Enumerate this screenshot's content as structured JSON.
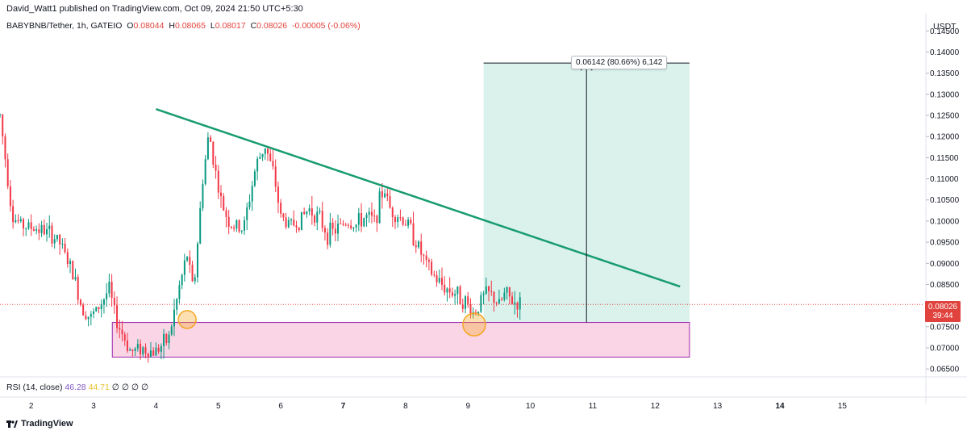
{
  "header": {
    "published": "David_Watt1 published on TradingView.com, Oct 09, 2024 21:50 UTC+5:30"
  },
  "legend": {
    "symbol": "BABYBNB/Tether, 1h, GATEIO",
    "open_label": "O",
    "open": "0.08044",
    "high_label": "H",
    "high": "0.08065",
    "low_label": "L",
    "low": "0.08017",
    "close_label": "C",
    "close": "0.08026",
    "change": "-0.00005 (-0.06%)"
  },
  "price_axis": {
    "unit": "USDT",
    "current_price": "0.08026",
    "countdown": "39:44"
  },
  "measure": {
    "label": "0.06142 (80.66%) 6,142"
  },
  "rsi": {
    "label": "RSI (14, close)",
    "value1": "46.28",
    "value2": "44.71",
    "extras": "∅ ∅ ∅ ∅"
  },
  "branding": {
    "logo_text": "TradingView"
  },
  "colors": {
    "up": "#089981",
    "down": "#f23645",
    "trendline": "#179b70",
    "measure_fill": "#d6f0ea",
    "support_fill": "#f9d5e5",
    "support_border": "#9c27b0",
    "circle": "#f5a623",
    "price_tag": "#e0433d"
  },
  "chart_data": {
    "type": "candlestick",
    "title": "BABYBNB/Tether, 1h, GATEIO",
    "ylabel": "USDT",
    "ylim": [
      0.0635,
      0.1485
    ],
    "y_ticks": [
      "0.14500",
      "0.14000",
      "0.13500",
      "0.13000",
      "0.12500",
      "0.12000",
      "0.11500",
      "0.11000",
      "0.10500",
      "0.10000",
      "0.09500",
      "0.09000",
      "0.08500",
      "0.08000",
      "0.07500",
      "0.07000",
      "0.06500"
    ],
    "y_tick_values": [
      0.145,
      0.14,
      0.135,
      0.13,
      0.125,
      0.12,
      0.115,
      0.11,
      0.105,
      0.1,
      0.095,
      0.09,
      0.085,
      0.08,
      0.075,
      0.07,
      0.065
    ],
    "x_ticks": [
      "2",
      "3",
      "4",
      "5",
      "6",
      "7",
      "8",
      "9",
      "10",
      "11",
      "12",
      "13",
      "14",
      "15"
    ],
    "x_tick_bold": [
      "7",
      "14"
    ],
    "xlim_days": [
      1.5,
      16.3
    ],
    "candles_path_days": [
      [
        1.5,
        0.125
      ],
      [
        1.7,
        0.101
      ],
      [
        1.85,
        0.099
      ],
      [
        2.0,
        0.0985
      ],
      [
        2.15,
        0.098
      ],
      [
        2.3,
        0.097
      ],
      [
        2.45,
        0.095
      ],
      [
        2.6,
        0.09
      ],
      [
        2.7,
        0.086
      ],
      [
        2.8,
        0.08
      ],
      [
        2.95,
        0.077
      ],
      [
        3.1,
        0.08
      ],
      [
        3.25,
        0.084
      ],
      [
        3.35,
        0.077
      ],
      [
        3.5,
        0.072
      ],
      [
        3.6,
        0.069
      ],
      [
        3.75,
        0.07
      ],
      [
        3.95,
        0.069
      ],
      [
        4.05,
        0.07
      ],
      [
        4.2,
        0.072
      ],
      [
        4.3,
        0.079
      ],
      [
        4.4,
        0.086
      ],
      [
        4.5,
        0.092
      ],
      [
        4.6,
        0.083
      ],
      [
        4.75,
        0.11
      ],
      [
        4.85,
        0.121
      ],
      [
        4.95,
        0.112
      ],
      [
        5.05,
        0.104
      ],
      [
        5.2,
        0.099
      ],
      [
        5.4,
        0.098
      ],
      [
        5.6,
        0.113
      ],
      [
        5.75,
        0.118
      ],
      [
        5.9,
        0.11
      ],
      [
        6.0,
        0.101
      ],
      [
        6.15,
        0.099
      ],
      [
        6.3,
        0.1
      ],
      [
        6.45,
        0.103
      ],
      [
        6.6,
        0.101
      ],
      [
        6.75,
        0.097
      ],
      [
        6.9,
        0.098
      ],
      [
        7.05,
        0.1
      ],
      [
        7.2,
        0.099
      ],
      [
        7.35,
        0.101
      ],
      [
        7.5,
        0.1
      ],
      [
        7.65,
        0.108
      ],
      [
        7.75,
        0.103
      ],
      [
        7.9,
        0.101
      ],
      [
        8.05,
        0.099
      ],
      [
        8.2,
        0.094
      ],
      [
        8.35,
        0.089
      ],
      [
        8.5,
        0.086
      ],
      [
        8.65,
        0.084
      ],
      [
        8.8,
        0.083
      ],
      [
        8.95,
        0.081
      ],
      [
        9.1,
        0.078
      ],
      [
        9.2,
        0.081
      ],
      [
        9.3,
        0.083
      ],
      [
        9.4,
        0.082
      ],
      [
        9.5,
        0.08
      ],
      [
        9.6,
        0.083
      ],
      [
        9.7,
        0.081
      ],
      [
        9.85,
        0.0803
      ]
    ],
    "annotations": {
      "trendline": {
        "from": [
          4.0,
          0.1265
        ],
        "to": [
          12.4,
          0.0845
        ]
      },
      "support_zone": {
        "x": [
          3.3,
          12.55
        ],
        "y": [
          0.0678,
          0.076
        ]
      },
      "long_target": {
        "x": [
          9.25,
          12.55
        ],
        "y": [
          0.076,
          0.1374
        ],
        "change": "0.06142 (80.66%) 6,142"
      },
      "circles": [
        {
          "x": 4.5,
          "y": 0.0767
        },
        {
          "x": 9.1,
          "y": 0.0755
        }
      ],
      "last_price_line": 0.08026
    }
  }
}
